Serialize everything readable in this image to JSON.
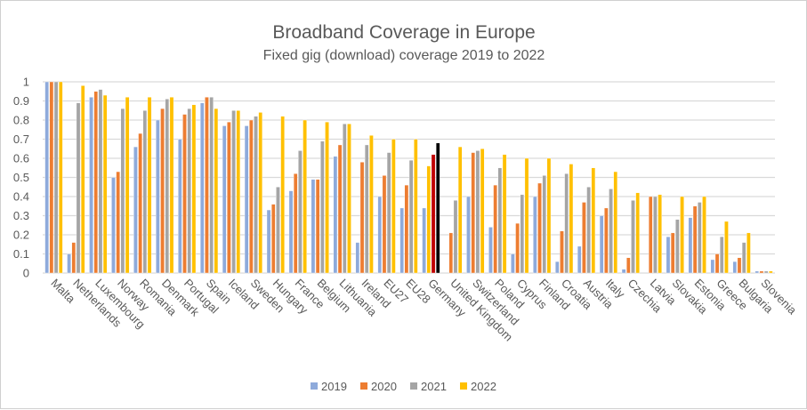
{
  "chart_data": {
    "type": "bar",
    "title": "Broadband Coverage in Europe",
    "subtitle": "Fixed gig (download) coverage 2019 to 2022",
    "xlabel": "",
    "ylabel": "",
    "ylim": [
      0,
      1
    ],
    "yticks": [
      "0",
      "0.1",
      "0.2",
      "0.3",
      "0.4",
      "0.5",
      "0.6",
      "0.7",
      "0.8",
      "0.9",
      "1"
    ],
    "grid": true,
    "legend": "bottom",
    "categories": [
      "Malta",
      "Netherlands",
      "Luxembourg",
      "Norway",
      "Romania",
      "Denmark",
      "Portugal",
      "Spain",
      "Iceland",
      "Sweden",
      "Hungary",
      "France",
      "Belgium",
      "Lithuania",
      "Ireland",
      "EU27",
      "EU28",
      "Germany",
      "United Kingdom",
      "Switzerland",
      "Poland",
      "Cyprus",
      "Finland",
      "Croatia",
      "Austria",
      "Italy",
      "Czechia",
      "Latvia",
      "Slovakia",
      "Estonia",
      "Greece",
      "Bulgaria",
      "Slovenia"
    ],
    "series": [
      {
        "name": "2019",
        "color": "#8eaadb",
        "values": [
          1,
          0.1,
          0.92,
          0.5,
          0.66,
          0.8,
          0.7,
          0.89,
          0.77,
          0.77,
          0.33,
          0.43,
          0.49,
          0.61,
          0.16,
          0.4,
          0.34,
          0.34,
          0,
          0.4,
          0.24,
          0.1,
          0.4,
          0.06,
          0.14,
          0.3,
          0.02,
          0,
          0.19,
          0.29,
          0.07,
          0.06,
          0.01
        ]
      },
      {
        "name": "2020",
        "color": "#ed7d31",
        "values": [
          1,
          0.16,
          0.95,
          0.53,
          0.73,
          0.86,
          0.83,
          0.92,
          0.79,
          0.8,
          0.36,
          0.52,
          0.49,
          0.67,
          0.58,
          0.51,
          0.46,
          0.56,
          0.21,
          0.63,
          0.46,
          0.26,
          0.47,
          0.22,
          0.37,
          0.34,
          0.08,
          0.4,
          0.21,
          0.35,
          0.1,
          0.08,
          0.01
        ]
      },
      {
        "name": "2021",
        "color": "#a5a5a5",
        "values": [
          1,
          0.89,
          0.96,
          0.86,
          0.85,
          0.91,
          0.86,
          0.92,
          0.85,
          0.82,
          0.45,
          0.64,
          0.69,
          0.78,
          0.67,
          0.63,
          0.59,
          0.62,
          0.38,
          0.64,
          0.55,
          0.41,
          0.51,
          0.52,
          0.45,
          0.44,
          0.38,
          0.4,
          0.28,
          0.37,
          0.19,
          0.16,
          0.01
        ]
      },
      {
        "name": "2022",
        "color": "#ffc000",
        "values": [
          1,
          0.98,
          0.93,
          0.92,
          0.92,
          0.92,
          0.88,
          0.86,
          0.85,
          0.84,
          0.82,
          0.8,
          0.79,
          0.78,
          0.72,
          0.7,
          0.7,
          0.68,
          0.66,
          0.65,
          0.62,
          0.6,
          0.6,
          0.57,
          0.55,
          0.53,
          0.42,
          0.41,
          0.4,
          0.4,
          0.27,
          0.21,
          0.01
        ]
      }
    ],
    "highlight": {
      "category": "Germany",
      "colors": [
        "#8eaadb",
        "#ffc000",
        "#c00000",
        "#000000"
      ]
    }
  }
}
